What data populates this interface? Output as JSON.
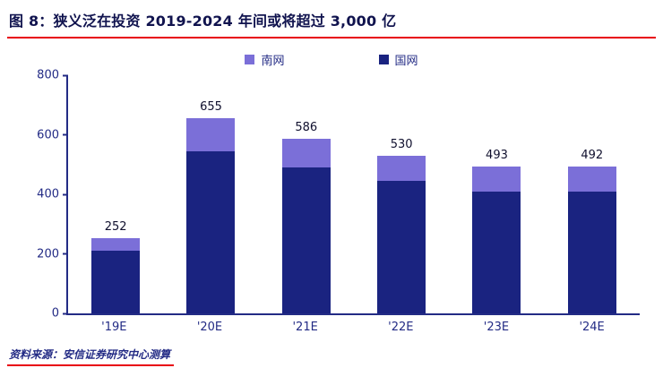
{
  "header": {
    "title": "图 8：狭义泛在投资 2019-2024 年间或将超过 3,000 亿"
  },
  "footer": {
    "source": "资料来源：安信证券研究中心测算"
  },
  "colors": {
    "accent_red": "#e8000d",
    "axis_navy": "#232b85",
    "south_grid_purple": "#7b6fd8",
    "state_grid_navy": "#1a2380"
  },
  "chart_data": {
    "type": "bar",
    "stacked": true,
    "title": "狭义泛在投资 2019-2024 年间或将超过 3,000 亿",
    "categories": [
      "'19E",
      "'20E",
      "'21E",
      "'22E",
      "'23E",
      "'24E"
    ],
    "series": [
      {
        "name": "南网",
        "color": "#7b6fd8",
        "values": [
          42,
          110,
          96,
          85,
          83,
          82
        ]
      },
      {
        "name": "国网",
        "color": "#1a2380",
        "values": [
          210,
          545,
          490,
          445,
          410,
          410
        ]
      }
    ],
    "totals": [
      252,
      655,
      586,
      530,
      493,
      492
    ],
    "xlabel": "",
    "ylabel": "",
    "ylim": [
      0,
      800
    ],
    "yticks": [
      0,
      200,
      400,
      600,
      800
    ],
    "legend_position": "top",
    "grid": false
  }
}
